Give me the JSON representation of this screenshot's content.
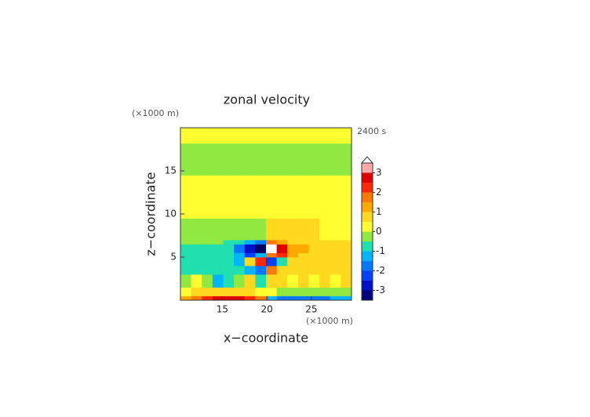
{
  "chart_data": {
    "type": "contour",
    "title": "zonal velocity",
    "time_label": "2400 s",
    "xlabel": "x−coordinate",
    "ylabel": "z−coordinate",
    "x_unit": "(×1000 m)",
    "y_unit": "(×1000 m)",
    "xlim": [
      10.3,
      29.5
    ],
    "ylim": [
      0,
      20
    ],
    "xticks": [
      15,
      20,
      25
    ],
    "yticks": [
      5,
      10,
      15
    ],
    "x_edges": [
      10.3,
      11.5,
      12.7,
      13.9,
      15.1,
      16.3,
      17.5,
      18.7,
      19.9,
      21.1,
      22.3,
      23.5,
      24.7,
      25.9,
      27.1,
      28.3,
      29.5
    ],
    "y_edges": [
      0,
      0.5,
      1.5,
      3,
      4,
      5,
      5.5,
      6.5,
      7,
      9.5,
      12,
      14.5,
      18.2,
      20
    ],
    "z": [
      [
        1.2,
        1.8,
        2.2,
        2.5,
        2.5,
        2.5,
        2.2,
        1.5,
        -1.5,
        -2,
        -2,
        -2,
        -2,
        -1.8,
        -1.5,
        -1.2
      ],
      [
        0.3,
        0.5,
        0.6,
        0.8,
        0.7,
        0.6,
        0.5,
        0.3,
        0.2,
        -0.3,
        -0.4,
        -0.5,
        -0.4,
        -0.3,
        -0.2,
        -0.2
      ],
      [
        -0.3,
        0.3,
        -0.2,
        -1.2,
        -0.8,
        -0.3,
        0.6,
        -0.6,
        0.6,
        0.6,
        0.3,
        0.7,
        0.3,
        0.6,
        0.2,
        0.6
      ],
      [
        -0.6,
        -0.7,
        -0.6,
        -0.6,
        -0.7,
        -0.9,
        -1.2,
        -1.8,
        1.6,
        0.8,
        0.7,
        0.7,
        0.7,
        0.6,
        0.6,
        0.6
      ],
      [
        -0.7,
        -0.7,
        -0.7,
        -0.8,
        -0.9,
        -1.1,
        0.8,
        2.3,
        -2.3,
        -1,
        0.9,
        0.8,
        0.7,
        0.6,
        0.6,
        0.6
      ],
      [
        -0.7,
        -0.7,
        -0.7,
        -0.8,
        -1,
        -1.5,
        -2.2,
        -1.5,
        1.8,
        2.3,
        1.2,
        0.9,
        0.7,
        0.7,
        0.6,
        0.6
      ],
      [
        -0.6,
        -0.6,
        -0.7,
        -0.8,
        -1,
        -1.6,
        -2.6,
        -3.8,
        3.8,
        2.7,
        1.4,
        1,
        0.8,
        0.7,
        0.6,
        0.6
      ],
      [
        -0.3,
        -0.3,
        -0.4,
        -0.5,
        -0.6,
        -0.9,
        -1.3,
        -1.6,
        1.6,
        1.2,
        0.9,
        0.7,
        0.6,
        0.6,
        0.6,
        0.6
      ],
      [
        -0.3,
        -0.3,
        -0.3,
        -0.3,
        -0.3,
        -0.3,
        -0.3,
        -0.3,
        0.6,
        0.6,
        0.6,
        0.6,
        0.5,
        0.4,
        0.4,
        0.4
      ],
      [
        0.2,
        0.2,
        0.2,
        0.2,
        0.2,
        0.2,
        0.2,
        0.2,
        0.3,
        0.3,
        0.3,
        0.3,
        0.3,
        0.3,
        0.3,
        0.3
      ],
      [
        0.2,
        0.2,
        0.2,
        0.2,
        0.2,
        0.2,
        0.2,
        0.2,
        0.2,
        0.2,
        0.2,
        0.2,
        0.2,
        0.2,
        0.2,
        0.2
      ],
      [
        -0.2,
        -0.2,
        -0.2,
        -0.2,
        -0.2,
        -0.2,
        -0.2,
        -0.2,
        -0.2,
        -0.2,
        -0.2,
        -0.2,
        -0.2,
        -0.2,
        -0.2,
        -0.2
      ],
      [
        0.2,
        0.2,
        0.2,
        0.2,
        0.2,
        0.2,
        0.2,
        0.2,
        0.2,
        0.2,
        0.2,
        0.2,
        0.2,
        0.2,
        0.2,
        0.2
      ]
    ],
    "levels": [
      -3.5,
      -3,
      -2.5,
      -2,
      -1.5,
      -1,
      -0.5,
      0,
      0.5,
      1,
      1.5,
      2,
      2.5,
      3,
      3.5
    ],
    "colors": [
      "#000080",
      "#0010c8",
      "#0040ff",
      "#0078ff",
      "#00b4ff",
      "#20e0b0",
      "#90e840",
      "#ffff30",
      "#ffd820",
      "#ffa800",
      "#ff7800",
      "#ff2800",
      "#e00000",
      "#ffa8a8"
    ],
    "under_color": "#000060",
    "over_color": "#ffffff",
    "cbar_ticks": [
      -3,
      -2,
      -1,
      0,
      1,
      2,
      3
    ]
  }
}
